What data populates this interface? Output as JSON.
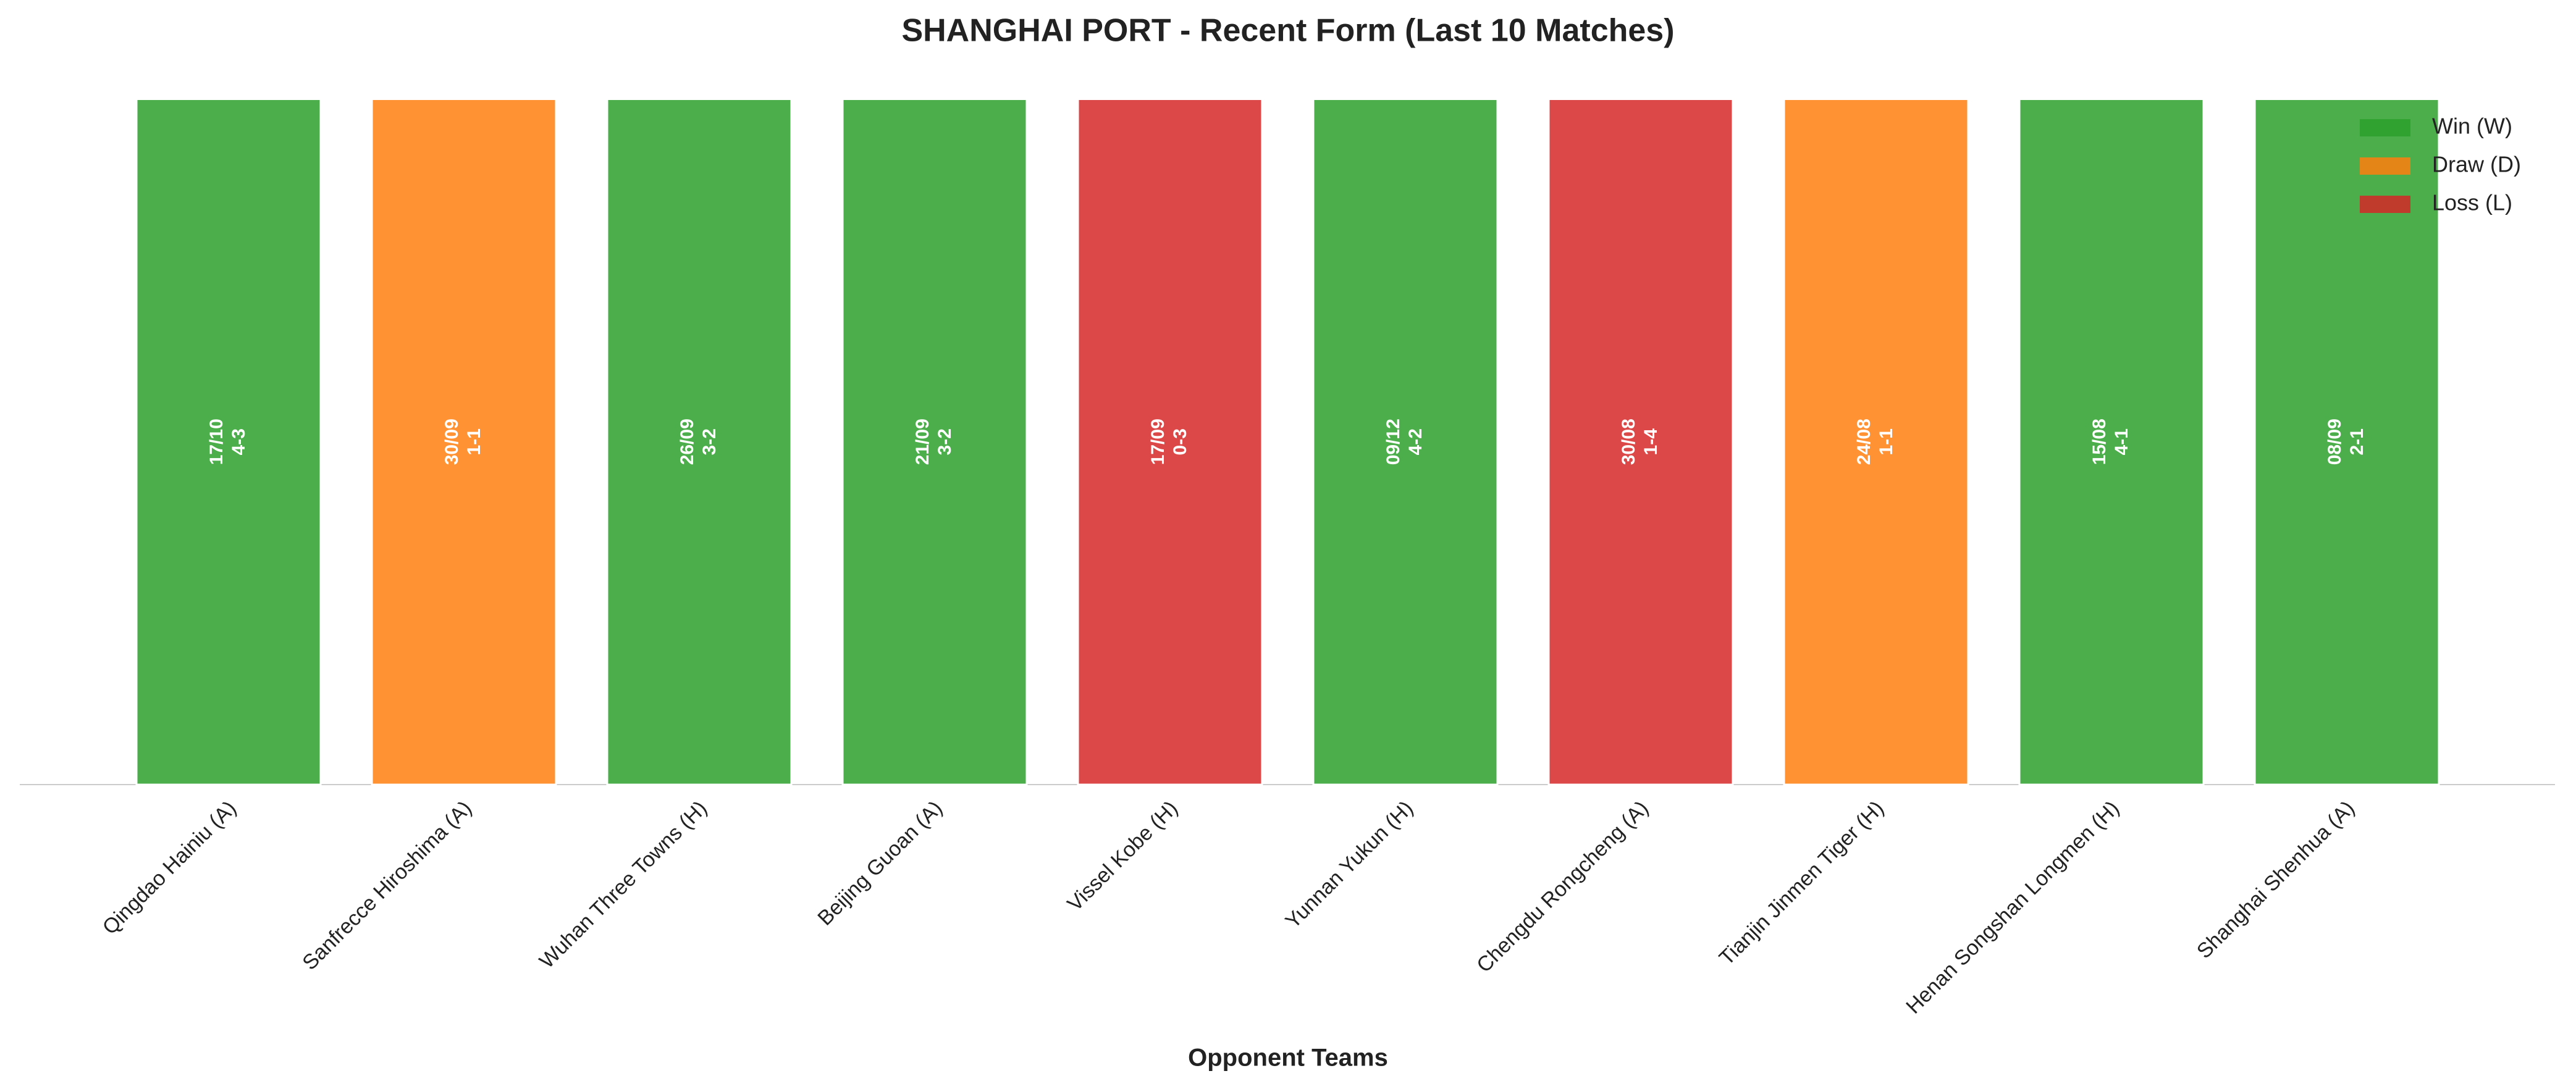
{
  "chart_data": {
    "type": "bar",
    "title": "SHANGHAI PORT - Recent Form (Last 10 Matches)",
    "x_label": "Opponent Teams",
    "categories": [
      "Qingdao Hainiu (A)",
      "Sanfrecce Hiroshima (A)",
      "Wuhan Three Towns (H)",
      "Beijing Guoan (A)",
      "Vissel Kobe (H)",
      "Yunnan Yukun (H)",
      "Chengdu Rongcheng (A)",
      "Tianjin Jinmen Tiger (H)",
      "Henan Songshan Longmen (H)",
      "Shanghai Shenhua (A)"
    ],
    "values": [
      1,
      1,
      1,
      1,
      1,
      1,
      1,
      1,
      1,
      1
    ],
    "dates": [
      "17/10",
      "30/09",
      "26/09",
      "21/09",
      "17/09",
      "09/12",
      "30/08",
      "24/08",
      "15/08",
      "08/09"
    ],
    "scores": [
      "4-3",
      "1-1",
      "3-2",
      "3-2",
      "0-3",
      "4-2",
      "1-4",
      "1-1",
      "4-1",
      "2-1"
    ],
    "colors": [
      "#2ca02c",
      "#ff7f0e",
      "#2ca02c",
      "#2ca02c",
      "#d62728",
      "#2ca02c",
      "#d62728",
      "#ff7f0e",
      "#2ca02c",
      "#2ca02c"
    ],
    "ylim": [
      0,
      1.05
    ],
    "legend_position": "upper right",
    "legend": [
      {
        "name": "Win (W)",
        "color": "#2ca02c"
      },
      {
        "name": "Draw (D)",
        "color": "#ff7f0e"
      },
      {
        "name": "Loss (L)",
        "color": "#d62728"
      }
    ]
  }
}
